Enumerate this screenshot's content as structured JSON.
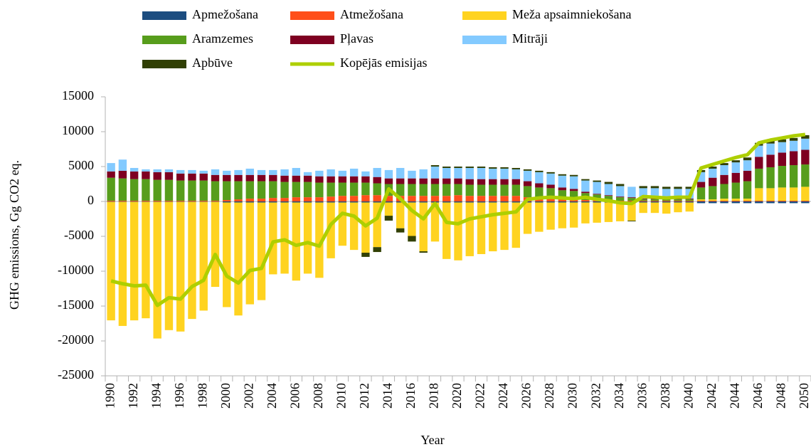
{
  "chart_data": {
    "type": "bar",
    "x_label": "Year",
    "y_label": "GHG emissions, Gg CO2 eq.",
    "categories": [
      "1990",
      null,
      "1992",
      null,
      "1994",
      null,
      "1996",
      null,
      "1998",
      null,
      "2000",
      null,
      "2002",
      null,
      "2004",
      null,
      "2006",
      null,
      "2008",
      null,
      "2010",
      null,
      "2012",
      null,
      "2014",
      null,
      "2016",
      null,
      "2018",
      null,
      "2020",
      null,
      "2022",
      null,
      "2024",
      null,
      "2026",
      null,
      "2028",
      null,
      "2030",
      null,
      "2032",
      null,
      "2034",
      null,
      "2036",
      null,
      "2038",
      null,
      "2040",
      null,
      "2042",
      null,
      "2044",
      null,
      "2046",
      null,
      "2048",
      null,
      "2050"
    ],
    "ylim": [
      -25000,
      15000
    ],
    "yticks": [
      -25000,
      -20000,
      -15000,
      -10000,
      -5000,
      0,
      5000,
      10000,
      15000
    ],
    "series": [
      {
        "name": "Apmežošana",
        "color": "#1c4d80",
        "values": [
          -50,
          -50,
          -50,
          -50,
          -50,
          -50,
          -50,
          -50,
          -50,
          -50,
          -150,
          -150,
          -150,
          -150,
          -150,
          -150,
          -150,
          -150,
          -150,
          -150,
          -150,
          -150,
          -150,
          -150,
          -150,
          -150,
          -150,
          -150,
          -150,
          -150,
          -150,
          -150,
          -150,
          -150,
          -150,
          -150,
          -150,
          -150,
          -150,
          -150,
          -150,
          -150,
          -150,
          -150,
          -150,
          -150,
          -150,
          -150,
          -150,
          -150,
          -150,
          -250,
          -250,
          -250,
          -250,
          -250,
          -250,
          -250,
          -250,
          -250,
          -250
        ]
      },
      {
        "name": "Atmežošana",
        "color": "#ff4f1a",
        "values": [
          100,
          100,
          100,
          100,
          100,
          100,
          100,
          100,
          100,
          100,
          200,
          300,
          400,
          400,
          500,
          500,
          600,
          600,
          600,
          700,
          800,
          800,
          900,
          900,
          800,
          800,
          800,
          800,
          800,
          800,
          900,
          800,
          800,
          800,
          800,
          800,
          600,
          500,
          400,
          300,
          300,
          200,
          200,
          100,
          100,
          100,
          100,
          100,
          100,
          100,
          100,
          100,
          100,
          100,
          100,
          100,
          100,
          100,
          100,
          100,
          100
        ]
      },
      {
        "name": "Meža apsaimniekošana",
        "color": "#ffd320",
        "values": [
          -17000,
          -17800,
          -17000,
          -16700,
          -19600,
          -18400,
          -18600,
          -16800,
          -15600,
          -12200,
          -15000,
          -16200,
          -14600,
          -14000,
          -10300,
          -10200,
          -11200,
          -10200,
          -10800,
          -8000,
          -6200,
          -6800,
          -7200,
          -6400,
          -1900,
          -3700,
          -4800,
          -7000,
          -5600,
          -8100,
          -8300,
          -7700,
          -7400,
          -7000,
          -6800,
          -6500,
          -4500,
          -4200,
          -3900,
          -3700,
          -3600,
          -3000,
          -2900,
          -2800,
          -2700,
          -2600,
          -1500,
          -1500,
          -1600,
          -1400,
          -1300,
          200,
          200,
          300,
          300,
          300,
          1800,
          1800,
          1900,
          1900,
          2000
        ]
      },
      {
        "name": "Aramzemes",
        "color": "#579d1c",
        "values": [
          3300,
          3200,
          3100,
          3100,
          3000,
          3000,
          2900,
          2900,
          2900,
          2800,
          2700,
          2600,
          2500,
          2500,
          2400,
          2300,
          2200,
          2200,
          2100,
          2000,
          1900,
          1900,
          1800,
          1700,
          1700,
          1700,
          1700,
          1700,
          1700,
          1700,
          1600,
          1600,
          1600,
          1600,
          1600,
          1600,
          1600,
          1500,
          1500,
          1300,
          1200,
          1000,
          800,
          700,
          500,
          400,
          200,
          200,
          200,
          200,
          200,
          1700,
          1900,
          2100,
          2300,
          2500,
          2800,
          3000,
          3100,
          3200,
          3200
        ]
      },
      {
        "name": "Pļavas",
        "color": "#7e0021",
        "values": [
          900,
          1100,
          1100,
          1100,
          1100,
          1100,
          1000,
          1000,
          1000,
          900,
          900,
          900,
          900,
          900,
          900,
          900,
          900,
          900,
          900,
          900,
          900,
          900,
          900,
          900,
          800,
          800,
          800,
          800,
          800,
          800,
          800,
          800,
          800,
          800,
          800,
          800,
          700,
          600,
          500,
          400,
          300,
          200,
          100,
          100,
          100,
          100,
          100,
          100,
          100,
          100,
          100,
          800,
          1200,
          1300,
          1400,
          1500,
          1700,
          1800,
          1900,
          2000,
          2100
        ]
      },
      {
        "name": "Mitrāji",
        "color": "#83caff",
        "values": [
          1200,
          1600,
          500,
          300,
          400,
          400,
          500,
          500,
          400,
          800,
          600,
          700,
          900,
          700,
          700,
          900,
          1100,
          500,
          800,
          1000,
          800,
          1100,
          700,
          1300,
          1200,
          1500,
          1100,
          1300,
          1700,
          1500,
          1500,
          1600,
          1600,
          1500,
          1500,
          1400,
          1500,
          1600,
          1600,
          1700,
          1800,
          1600,
          1700,
          1600,
          1500,
          1500,
          1500,
          1500,
          1400,
          1400,
          1400,
          1400,
          1300,
          1400,
          1500,
          1500,
          1600,
          1600,
          1500,
          1500,
          1600
        ]
      },
      {
        "name": "Apbūve",
        "color": "#314004",
        "values": [
          0,
          0,
          0,
          0,
          0,
          0,
          0,
          0,
          0,
          0,
          0,
          0,
          0,
          0,
          0,
          0,
          0,
          0,
          0,
          0,
          0,
          0,
          -600,
          -700,
          -700,
          -600,
          -800,
          -200,
          200,
          200,
          200,
          200,
          200,
          200,
          200,
          200,
          200,
          200,
          200,
          200,
          200,
          200,
          200,
          300,
          300,
          -100,
          300,
          300,
          300,
          300,
          300,
          300,
          300,
          300,
          300,
          400,
          400,
          400,
          400,
          400,
          500
        ]
      },
      {
        "name": "Kopējās emisijas",
        "type": "line",
        "color": "#aecf00",
        "values": [
          -11400,
          -11800,
          -12100,
          -12000,
          -14900,
          -13800,
          -14000,
          -12200,
          -11300,
          -7600,
          -10700,
          -11700,
          -9900,
          -9600,
          -5800,
          -5500,
          -6300,
          -5900,
          -6400,
          -3300,
          -1700,
          -2100,
          -3500,
          -2400,
          1800,
          400,
          -1300,
          -2500,
          -300,
          -3000,
          -3200,
          -2500,
          -2200,
          -1900,
          -1700,
          -1500,
          300,
          500,
          600,
          500,
          400,
          600,
          300,
          100,
          -200,
          -300,
          700,
          600,
          500,
          600,
          600,
          4800,
          5300,
          5800,
          6300,
          6700,
          8400,
          8800,
          9100,
          9400,
          9600
        ]
      }
    ]
  }
}
